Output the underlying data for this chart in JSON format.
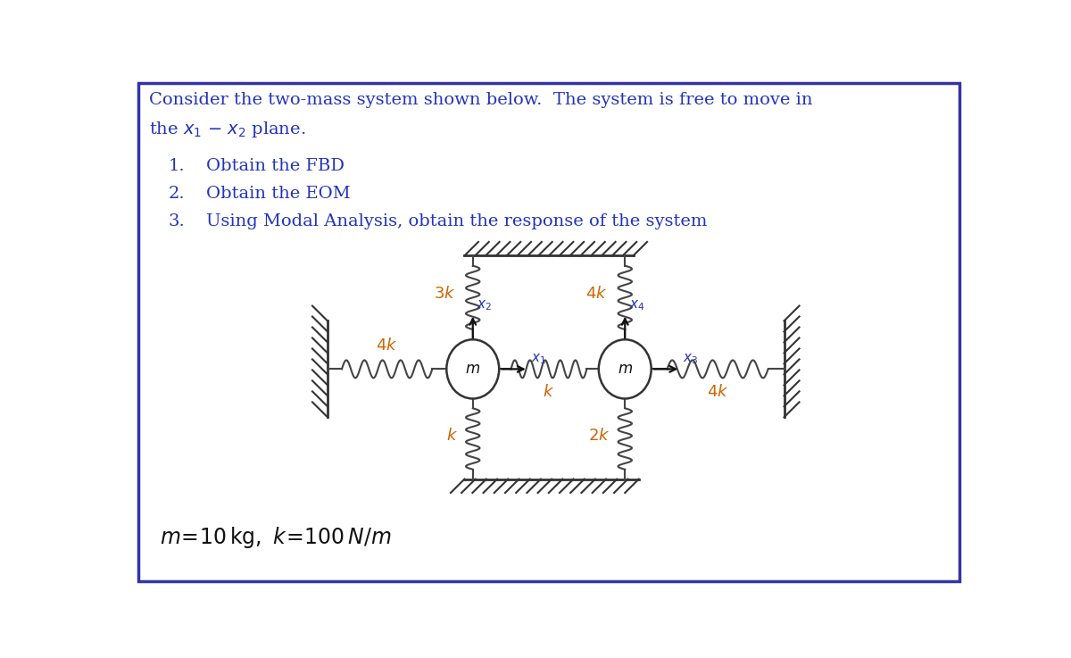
{
  "bg_color": "#ffffff",
  "border_color": "#3333aa",
  "text_color": "#2233bb",
  "spring_color": "#444444",
  "mass_color": "#ffffff",
  "mass_edge_color": "#333333",
  "spring_label_color": "#cc6600",
  "arrow_color": "#111111",
  "hatch_color": "#333333",
  "title_line1": "Consider the two-mass system shown below.  The system is free to move in",
  "title_line2": "the x",
  "item1": "Obtain the FBD",
  "item2": "Obtain the EOM",
  "item3": "Using Modal Analysis, obtain the response of the system"
}
